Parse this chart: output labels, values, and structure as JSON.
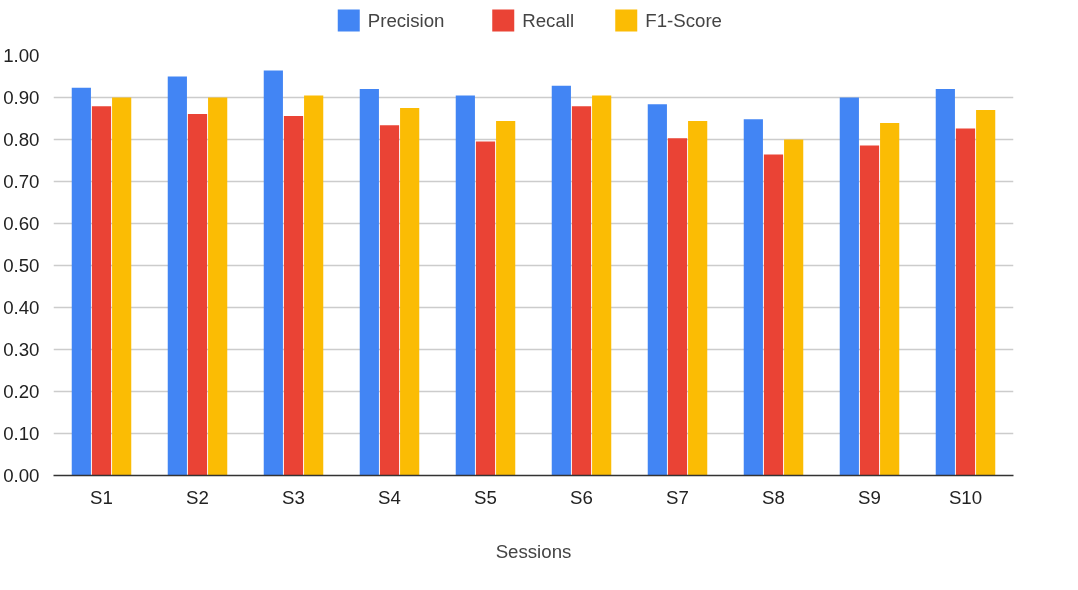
{
  "chart_data": {
    "type": "bar",
    "xlabel": "Sessions",
    "categories": [
      "S1",
      "S2",
      "S3",
      "S4",
      "S5",
      "S6",
      "S7",
      "S8",
      "S9",
      "S10"
    ],
    "series": [
      {
        "name": "Precision",
        "color": "#4285f4",
        "values": [
          0.923,
          0.95,
          0.964,
          0.92,
          0.905,
          0.928,
          0.884,
          0.848,
          0.9,
          0.92
        ]
      },
      {
        "name": "Recall",
        "color": "#ea4335",
        "values": [
          0.879,
          0.861,
          0.856,
          0.834,
          0.795,
          0.879,
          0.803,
          0.764,
          0.786,
          0.826
        ]
      },
      {
        "name": "F1-Score",
        "color": "#fbbc04",
        "values": [
          0.9,
          0.9,
          0.905,
          0.875,
          0.844,
          0.905,
          0.844,
          0.8,
          0.839,
          0.87
        ]
      }
    ],
    "ylim": [
      0,
      1
    ],
    "yticks": [
      {
        "value": 0,
        "label": "0.00"
      },
      {
        "value": 0.1,
        "label": "0.10"
      },
      {
        "value": 0.2,
        "label": "0.20"
      },
      {
        "value": 0.3,
        "label": "0.30"
      },
      {
        "value": 0.4,
        "label": "0.40"
      },
      {
        "value": 0.5,
        "label": "0.50"
      },
      {
        "value": 0.6,
        "label": "0.60"
      },
      {
        "value": 0.7,
        "label": "0.70"
      },
      {
        "value": 0.8,
        "label": "0.80"
      },
      {
        "value": 0.9,
        "label": "0.90"
      },
      {
        "value": 1.0,
        "label": "1.00"
      }
    ],
    "grid": "y",
    "legend": "top"
  }
}
